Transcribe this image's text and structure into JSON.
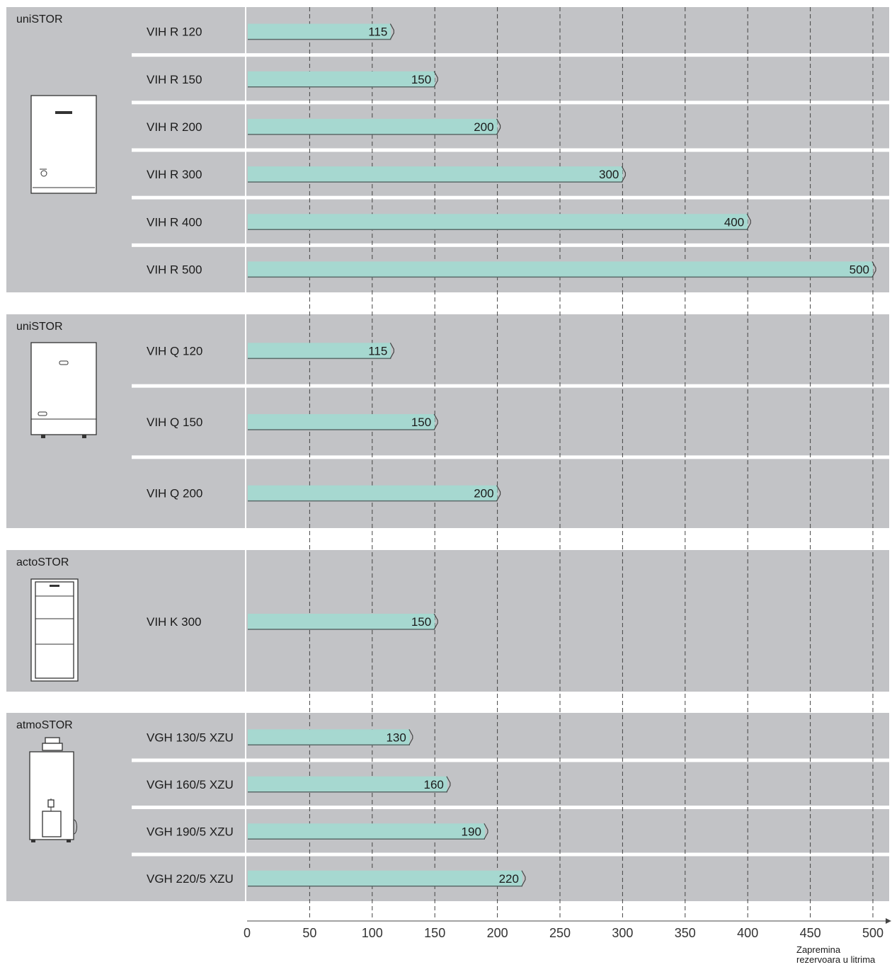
{
  "chart_data": {
    "type": "bar",
    "orientation": "horizontal",
    "xlim": [
      0,
      500
    ],
    "x_ticks": [
      "0",
      "50",
      "100",
      "150",
      "200",
      "250",
      "300",
      "350",
      "400",
      "450",
      "500"
    ],
    "x_axis_title": [
      "Zapremina",
      "rezervoara u litrima"
    ],
    "grid": "vertical dashed",
    "groups": [
      {
        "name": "uniSTOR",
        "items": [
          {
            "label": "VIH R 120",
            "value": 115
          },
          {
            "label": "VIH R 150",
            "value": 150
          },
          {
            "label": "VIH R 200",
            "value": 200
          },
          {
            "label": "VIH R 300",
            "value": 300
          },
          {
            "label": "VIH R 400",
            "value": 400
          },
          {
            "label": "VIH R 500",
            "value": 500
          }
        ]
      },
      {
        "name": "uniSTOR",
        "items": [
          {
            "label": "VIH Q 120",
            "value": 115
          },
          {
            "label": "VIH Q 150",
            "value": 150
          },
          {
            "label": "VIH Q 200",
            "value": 200
          }
        ]
      },
      {
        "name": "actoSTOR",
        "items": [
          {
            "label": "VIH K 300",
            "value": 150
          }
        ]
      },
      {
        "name": "atmoSTOR",
        "items": [
          {
            "label": "VGH 130/5 XZU",
            "value": 130
          },
          {
            "label": "VGH 160/5 XZU",
            "value": 160
          },
          {
            "label": "VGH 190/5 XZU",
            "value": 190
          },
          {
            "label": "VGH 220/5 XZU",
            "value": 220
          }
        ]
      }
    ]
  },
  "colors": {
    "group_background": "#c2c3c6",
    "bar_fill": "#a6d8d0"
  },
  "icons": [
    "unistor-vih-r-icon",
    "unistor-vih-q-icon",
    "actostor-icon",
    "atmostor-icon"
  ]
}
